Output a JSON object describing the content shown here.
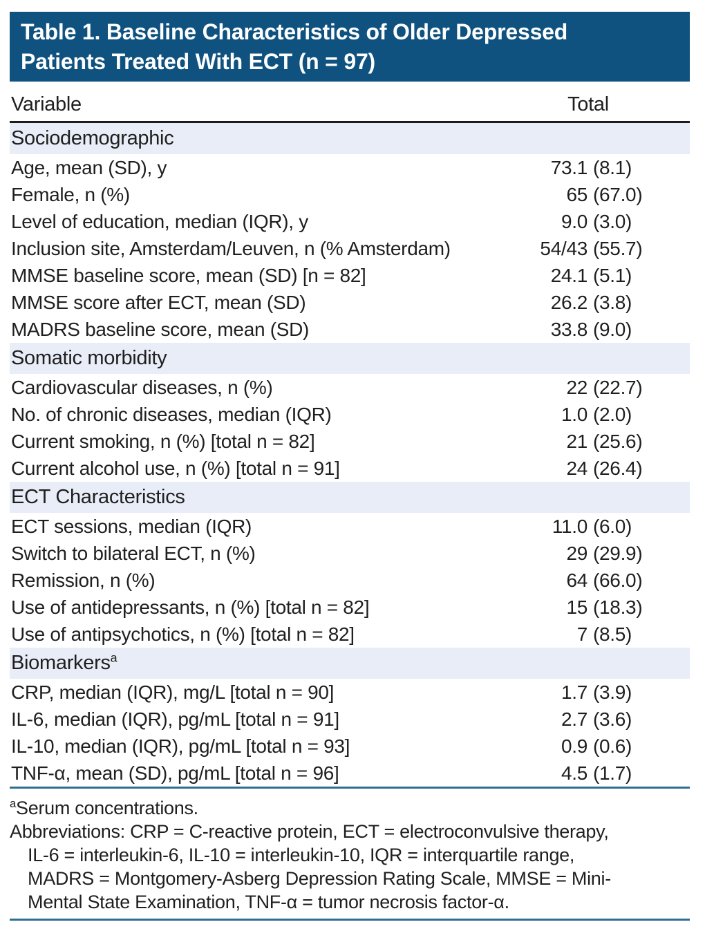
{
  "title_line1": "Table 1. Baseline Characteristics of Older Depressed",
  "title_line2": "Patients Treated With ECT (n = 97)",
  "columns": {
    "variable": "Variable",
    "total": "Total"
  },
  "sections": [
    {
      "label": "Sociodemographic",
      "sup": "",
      "rows": [
        {
          "label": "Age, mean (SD), y",
          "value": "73.1 (8.1)"
        },
        {
          "label": "Female, n (%)",
          "value": "65 (67.0)"
        },
        {
          "label": "Level of education, median (IQR), y",
          "value": "9.0 (3.0)"
        },
        {
          "label": "Inclusion site, Amsterdam/Leuven, n (% Amsterdam)",
          "value": "54/43 (55.7)"
        },
        {
          "label": "MMSE baseline score, mean (SD) [n = 82]",
          "value": "24.1 (5.1)"
        },
        {
          "label": "MMSE score after ECT, mean (SD)",
          "value": "26.2 (3.8)"
        },
        {
          "label": "MADRS baseline score, mean (SD)",
          "value": "33.8 (9.0)"
        }
      ]
    },
    {
      "label": "Somatic morbidity",
      "sup": "",
      "rows": [
        {
          "label": "Cardiovascular diseases, n (%)",
          "value": "22 (22.7)"
        },
        {
          "label": "No. of chronic diseases, median (IQR)",
          "value": "1.0 (2.0)"
        },
        {
          "label": "Current smoking, n (%) [total n = 82]",
          "value": "21 (25.6)"
        },
        {
          "label": "Current alcohol use, n (%) [total n = 91]",
          "value": "24 (26.4)"
        }
      ]
    },
    {
      "label": "ECT Characteristics",
      "sup": "",
      "rows": [
        {
          "label": "ECT sessions, median (IQR)",
          "value": "11.0 (6.0)"
        },
        {
          "label": "Switch to bilateral ECT, n (%)",
          "value": "29 (29.9)"
        },
        {
          "label": "Remission, n (%)",
          "value": "64 (66.0)"
        },
        {
          "label": "Use of antidepressants, n (%) [total n = 82]",
          "value": "15 (18.3)"
        },
        {
          "label": "Use of antipsychotics, n (%) [total n = 82]",
          "value": "7 (8.5)"
        }
      ]
    },
    {
      "label": "Biomarkers",
      "sup": "a",
      "rows": [
        {
          "label": "CRP, median (IQR), mg/L [total n = 90]",
          "value": "1.7 (3.9)"
        },
        {
          "label": "IL-6, median (IQR), pg/mL [total n = 91]",
          "value": "2.7 (3.6)"
        },
        {
          "label": "IL-10, median (IQR), pg/mL [total n = 93]",
          "value": "0.9 (0.6)"
        },
        {
          "label": "TNF-α, mean (SD), pg/mL [total n = 96]",
          "value": "4.5 (1.7)"
        }
      ]
    }
  ],
  "footnotes": {
    "serum_sup": "a",
    "serum_text": "Serum concentrations.",
    "abbreviation_lines": [
      "Abbreviations: CRP = C-reactive protein, ECT = electroconvulsive therapy,",
      "IL-6 = interleukin-6, IL-10 = interleukin-10, IQR = interquartile range,",
      "MADRS = Montgomery-Asberg Depression Rating Scale, MMSE = Mini-",
      "Mental State Examination, TNF-α = tumor necrosis factor-α."
    ]
  },
  "colors": {
    "header_bg": "#0F527F",
    "band_bg": "#E8EDF7",
    "rule_blue": "#2E6E94",
    "rule_dark": "#1C1C1C"
  }
}
